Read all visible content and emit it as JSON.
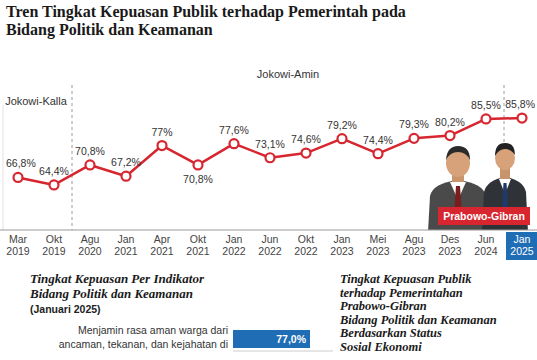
{
  "chart_data": [
    {
      "type": "line",
      "title": "Tren Tingkat Kepuasan Publik terhadap Pemerintah pada\nBidang Politik dan Keamanan",
      "categories": [
        "Mar 2019",
        "Okt 2019",
        "Agu 2020",
        "Jan 2021",
        "Apr 2021",
        "Okt 2021",
        "Jan 2022",
        "Jun 2022",
        "Okt 2022",
        "Jan 2023",
        "Mei 2023",
        "Agu 2023",
        "Des 2023",
        "Jun 2024",
        "Jan 2025"
      ],
      "values": [
        66.8,
        64.4,
        70.8,
        67.2,
        77,
        70.8,
        77.6,
        73.1,
        74.6,
        79.2,
        74.4,
        79.3,
        80.2,
        85.5,
        85.8
      ],
      "value_labels": [
        "66,8%",
        "64,4%",
        "70,8%",
        "67,2%",
        "77%",
        "70,8%",
        "77,6%",
        "73,1%",
        "74,6%",
        "79,2%",
        "74,4%",
        "79,3%",
        "80,2%",
        "85,5%",
        "85,8%"
      ],
      "color": "#d7262f",
      "marker": "circle",
      "ylim": [
        50,
        90
      ],
      "tick_labels": "x",
      "grid": false,
      "data_labels": true,
      "annotations": [
        {
          "text": "Jokowi-Kalla",
          "from": "Mar 2019",
          "to": "Okt 2019"
        },
        {
          "text": "Jokowi-Amin",
          "from": "Agu 2020",
          "to": "Jun 2024"
        },
        {
          "text": "Prabowo-Gibran",
          "from": "Jan 2025",
          "to": "Jan 2025"
        }
      ]
    },
    {
      "type": "bar",
      "title": "Tingkat Kepuasan Per Indikator\nBidang Politik dan Keamanan",
      "subtitle": "(Januari 2025)",
      "categories": [
        "Menjamin rasa aman warga dari\nancaman, tekanan, dan kejahatan di"
      ],
      "values": [
        77.0
      ],
      "value_labels": [
        "77,0%"
      ],
      "color": "#1f6db5",
      "orientation": "horizontal",
      "xlim": [
        0,
        100
      ],
      "tick_labels": false,
      "data_labels": true
    }
  ],
  "sidebar": {
    "title": "Tingkat Kepuasan Publik\nterhadap Pemerintahan\nPrabowo-Gibran\nBidang Politik dan Keamanan\nBerdasarkan Status\nSosial Ekonomi"
  }
}
